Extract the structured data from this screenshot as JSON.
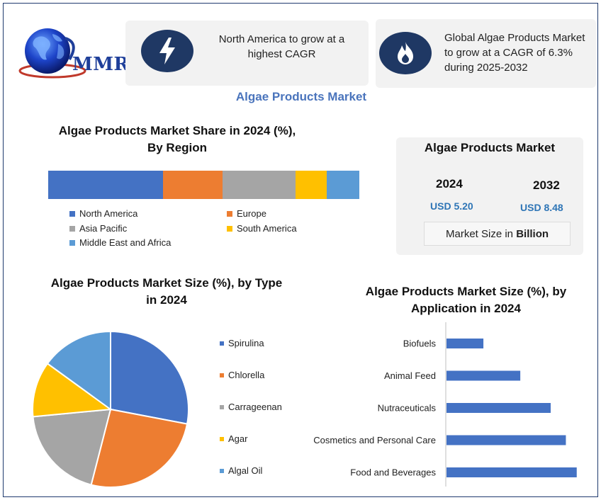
{
  "logo": {
    "text": "MMR"
  },
  "cards": [
    {
      "icon": "lightning-bolt-icon",
      "text": "North America to grow at a highest CAGR"
    },
    {
      "icon": "flame-icon",
      "text": "Global Algae Products Market to grow at a CAGR of 6.3% during 2025-2032"
    }
  ],
  "main_title": "Algae Products Market",
  "market_size": {
    "title": "Algae Products Market",
    "year1": "2024",
    "value1": "USD 5.20",
    "year2": "2032",
    "value2": "USD 8.48",
    "footer_prefix": "Market Size in ",
    "footer_bold": "Billion"
  },
  "colors": {
    "blue": "#4472c4",
    "orange": "#ed7d31",
    "gray": "#a5a5a5",
    "yellow": "#ffc000",
    "light_blue": "#5b9bd5",
    "navy": "#1f3864",
    "frame": "#1f3a6e"
  },
  "chart_data": [
    {
      "type": "bar",
      "orientation": "stacked-horizontal",
      "title": "Algae Products Market Share in 2024 (%), By Region",
      "legend_position": "bottom",
      "series": [
        {
          "name": "North America",
          "values": [
            37
          ]
        },
        {
          "name": "Europe",
          "values": [
            19
          ]
        },
        {
          "name": "Asia Pacific",
          "values": [
            23.5
          ]
        },
        {
          "name": "South America",
          "values": [
            10
          ]
        },
        {
          "name": "Middle East and Africa",
          "values": [
            10.5
          ]
        }
      ]
    },
    {
      "type": "pie",
      "title": "Algae Products Market Size (%), by Type in 2024",
      "legend_position": "right",
      "categories": [
        "Spirulina",
        "Chlorella",
        "Carrageenan",
        "Agar",
        "Algal Oil"
      ],
      "values": [
        28,
        26,
        19.5,
        11.5,
        15
      ]
    },
    {
      "type": "bar",
      "orientation": "horizontal",
      "title": "Algae Products Market Size (%), by Application in 2024",
      "categories": [
        "Biofuels",
        "Animal Feed",
        "Nutraceuticals",
        "Cosmetics and Personal Care",
        "Food and Beverages"
      ],
      "values": [
        8.5,
        17,
        24,
        27.5,
        30
      ],
      "xlim": [
        0,
        32
      ],
      "grid": false
    }
  ]
}
